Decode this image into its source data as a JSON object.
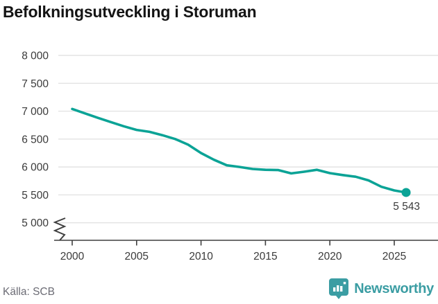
{
  "title": "Befolkningsutveckling i Storuman",
  "footer": {
    "source": "Källa: SCB",
    "brand": "Newsworthy"
  },
  "colors": {
    "line": "#0ba396",
    "grid": "#e3e3e3",
    "axis": "#3f3f3f",
    "tick_text": "#3a3a3a",
    "brand_teal": "#3b9da3"
  },
  "chart_data": {
    "type": "line",
    "title": "Befolkningsutveckling i Storuman",
    "xlabel": "",
    "ylabel": "",
    "x": [
      2000,
      2001,
      2002,
      2003,
      2004,
      2005,
      2006,
      2007,
      2008,
      2009,
      2010,
      2011,
      2012,
      2013,
      2014,
      2015,
      2016,
      2017,
      2018,
      2019,
      2020,
      2021,
      2022,
      2023,
      2024,
      2025,
      2025.92
    ],
    "values": [
      7040,
      6960,
      6880,
      6805,
      6730,
      6665,
      6630,
      6570,
      6500,
      6400,
      6250,
      6130,
      6030,
      6000,
      5965,
      5950,
      5945,
      5885,
      5915,
      5950,
      5890,
      5855,
      5825,
      5760,
      5645,
      5580,
      5543
    ],
    "end_label": "5 543",
    "x_ticks": [
      2000,
      2005,
      2010,
      2015,
      2020,
      2025
    ],
    "x_tick_labels": [
      "2000",
      "2005",
      "2010",
      "2015",
      "2020",
      "2025"
    ],
    "y_ticks": [
      5000,
      5500,
      6000,
      6500,
      7000,
      7500,
      8000
    ],
    "y_tick_labels": [
      "5 000",
      "5 500",
      "6 000",
      "6 500",
      "7 000",
      "7 500",
      "8 000"
    ],
    "xlim": [
      2000,
      2026
    ],
    "ylim": [
      5000,
      8000
    ],
    "axis_break": true,
    "grid": "horizontal-only",
    "legend": "none"
  }
}
